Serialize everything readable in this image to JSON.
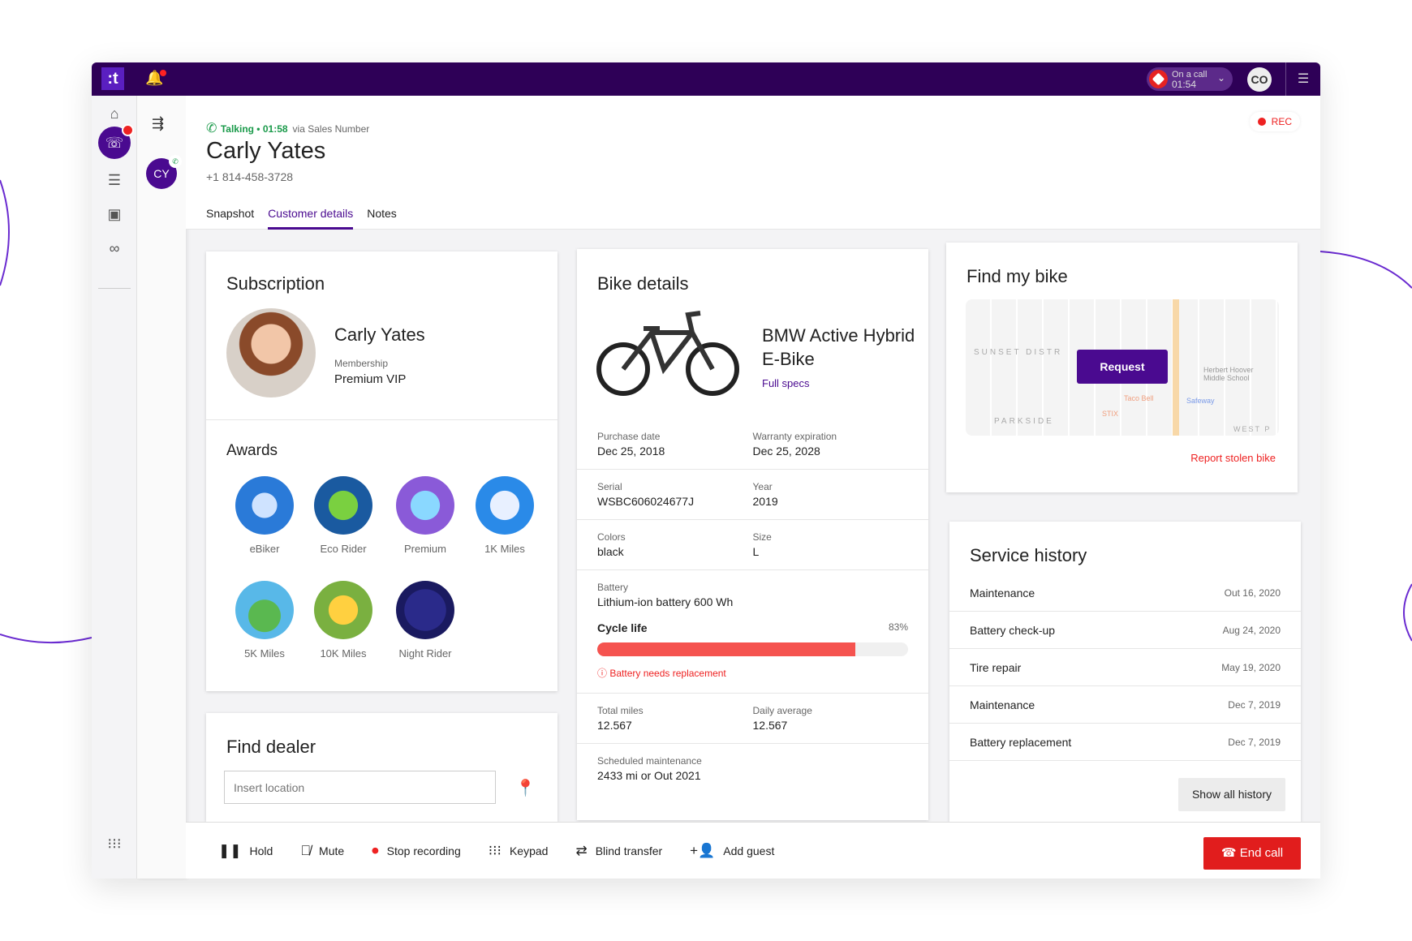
{
  "topbar": {
    "logo": ":t",
    "on_call_label": "On a call",
    "on_call_time": "01:54",
    "user_initials": "CO"
  },
  "call": {
    "status": "Talking • 01:58",
    "via": "via Sales Number",
    "name": "Carly Yates",
    "phone": "+1 814-458-3728",
    "rec": "REC",
    "caller_initials": "CY"
  },
  "tabs": [
    {
      "label": "Snapshot",
      "active": false
    },
    {
      "label": "Customer details",
      "active": true
    },
    {
      "label": "Notes",
      "active": false
    }
  ],
  "subscription": {
    "title": "Subscription",
    "name": "Carly Yates",
    "membership_label": "Membership",
    "membership": "Premium VIP"
  },
  "awards": {
    "title": "Awards",
    "items": [
      "eBiker",
      "Eco Rider",
      "Premium",
      "1K Miles",
      "5K Miles",
      "10K Miles",
      "Night Rider"
    ]
  },
  "dealer": {
    "title": "Find dealer",
    "placeholder": "Insert location"
  },
  "bike": {
    "title": "Bike details",
    "model": "BMW Active Hybrid E-Bike",
    "full_specs": "Full specs",
    "purchase_label": "Purchase date",
    "purchase": "Dec 25, 2018",
    "warranty_label": "Warranty expiration",
    "warranty": "Dec 25, 2028",
    "serial_label": "Serial",
    "serial": "WSBC606024677J",
    "year_label": "Year",
    "year": "2019",
    "colors_label": "Colors",
    "colors": "black",
    "size_label": "Size",
    "size": "L",
    "battery_label": "Battery",
    "battery": "Lithium-ion battery 600 Wh",
    "cycle_label": "Cycle life",
    "cycle_pct": "83%",
    "cycle_value": 83,
    "warning": "Battery needs replacement",
    "total_label": "Total miles",
    "total": "12.567",
    "daily_label": "Daily average",
    "daily": "12.567",
    "maint_label": "Scheduled maintenance",
    "maint": "2433 mi or Out 2021"
  },
  "findbike": {
    "title": "Find my bike",
    "request": "Request",
    "report": "Report stolen bike",
    "map_labels": [
      "SUNSET DISTR",
      "PARKSIDE",
      "Herbert Hoover Middle School",
      "Safeway",
      "Taco Bell",
      "STIX",
      "WEST P"
    ]
  },
  "service": {
    "title": "Service history",
    "items": [
      {
        "name": "Maintenance",
        "date": "Out 16, 2020"
      },
      {
        "name": "Battery check-up",
        "date": "Aug 24, 2020"
      },
      {
        "name": "Tire repair",
        "date": "May 19, 2020"
      },
      {
        "name": "Maintenance",
        "date": "Dec 7, 2019"
      },
      {
        "name": "Battery replacement",
        "date": "Dec 7, 2019"
      }
    ],
    "show_all": "Show all history"
  },
  "actions": {
    "hold": "Hold",
    "mute": "Mute",
    "stop_recording": "Stop recording",
    "keypad": "Keypad",
    "blind_transfer": "Blind transfer",
    "add_guest": "Add guest",
    "end_call": "End call"
  },
  "colors": {
    "brand": "#2e0057",
    "accent": "#4a0a90",
    "danger": "#e11d1d",
    "progress": "#f5534f"
  }
}
